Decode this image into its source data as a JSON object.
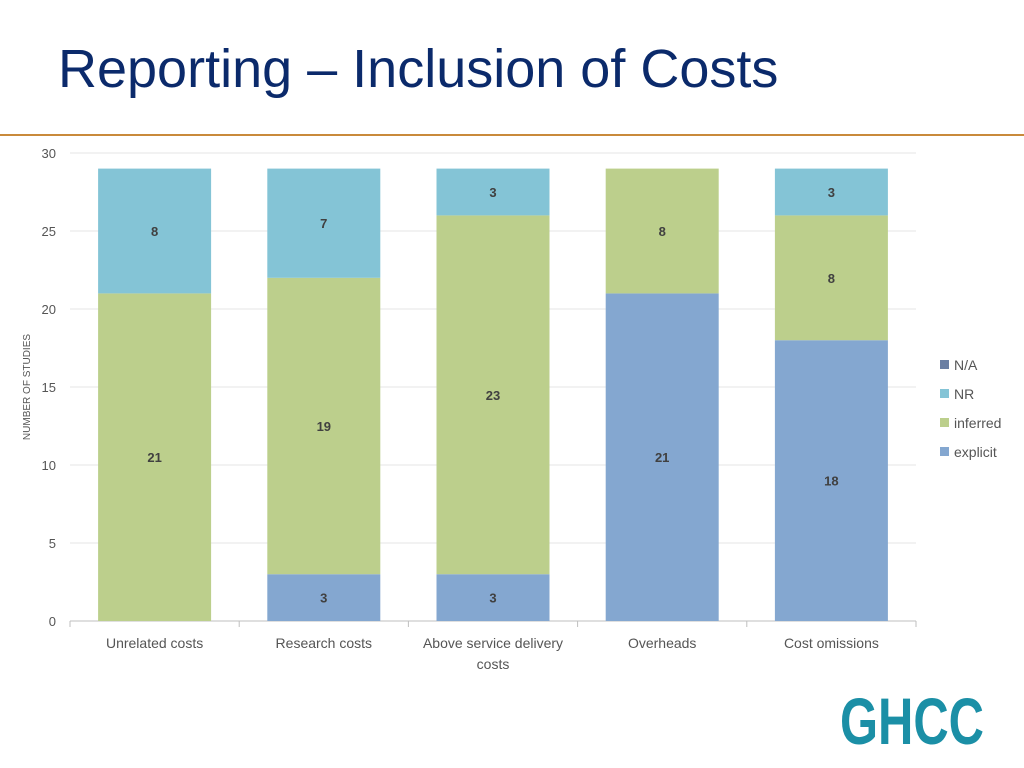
{
  "slide": {
    "title": "Reporting – Inclusion of Costs"
  },
  "logo": {
    "text": "GHCC",
    "color": "#1b8fa6"
  },
  "chart_data": {
    "type": "bar",
    "stacked": true,
    "title": "",
    "xlabel": "",
    "ylabel": "NUMBER OF STUDIES",
    "ylim": [
      0,
      30
    ],
    "yticks": [
      0,
      5,
      10,
      15,
      20,
      25,
      30
    ],
    "grid": true,
    "legend_position": "right",
    "categories": [
      [
        "Unrelated costs"
      ],
      [
        "Research costs"
      ],
      [
        "Above service delivery",
        "costs"
      ],
      [
        "Overheads"
      ],
      [
        "Cost omissions"
      ]
    ],
    "series": [
      {
        "name": "explicit",
        "color": "#84a7d0",
        "values": [
          0,
          3,
          3,
          21,
          18
        ]
      },
      {
        "name": "inferred",
        "color": "#bccf8c",
        "values": [
          21,
          19,
          23,
          8,
          8
        ]
      },
      {
        "name": "NR",
        "color": "#84c4d6",
        "values": [
          8,
          7,
          3,
          0,
          3
        ]
      },
      {
        "name": "N/A",
        "color": "#6a7fa3",
        "values": [
          0,
          0,
          0,
          0,
          0
        ]
      }
    ],
    "legend_order": [
      "N/A",
      "NR",
      "inferred",
      "explicit"
    ]
  }
}
